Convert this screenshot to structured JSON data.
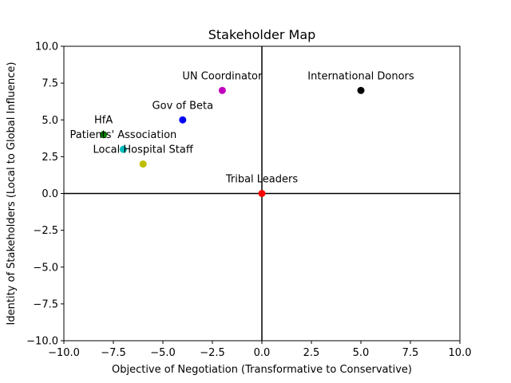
{
  "chart_data": {
    "type": "scatter",
    "title": "Stakeholder Map",
    "xlabel": "Objective of Negotiation (Transformative to Conservative)",
    "ylabel": "Identity of Stakeholders (Local to Global Influence)",
    "xlim": [
      -10,
      10
    ],
    "ylim": [
      -10,
      10
    ],
    "xticks": [
      -10,
      -7.5,
      -5,
      -2.5,
      0,
      2.5,
      5,
      7.5,
      10
    ],
    "yticks": [
      -10,
      -7.5,
      -5,
      -2.5,
      0,
      2.5,
      5,
      7.5,
      10
    ],
    "xtick_labels": [
      "−10.0",
      "−7.5",
      "−5.0",
      "−2.5",
      "0.0",
      "2.5",
      "5.0",
      "7.5",
      "10.0"
    ],
    "ytick_labels": [
      "−10.0",
      "−7.5",
      "−5.0",
      "−2.5",
      "0.0",
      "2.5",
      "5.0",
      "7.5",
      "10.0"
    ],
    "grid": false,
    "reference_lines": {
      "x": 0,
      "y": 0
    },
    "points": [
      {
        "label": "HfA",
        "x": -8,
        "y": 4,
        "color": "#008000"
      },
      {
        "label": "Patients' Association",
        "x": -7,
        "y": 3,
        "color": "#00bfbf"
      },
      {
        "label": "Local Hospital Staff",
        "x": -6,
        "y": 2,
        "color": "#bfbf00"
      },
      {
        "label": "Gov of Beta",
        "x": -4,
        "y": 5,
        "color": "#0000ff"
      },
      {
        "label": "UN Coordinator",
        "x": -2,
        "y": 7,
        "color": "#bf00bf"
      },
      {
        "label": "International Donors",
        "x": 5,
        "y": 7,
        "color": "#000000"
      },
      {
        "label": "Tribal Leaders",
        "x": 0,
        "y": 0,
        "color": "#ff0000"
      }
    ]
  }
}
